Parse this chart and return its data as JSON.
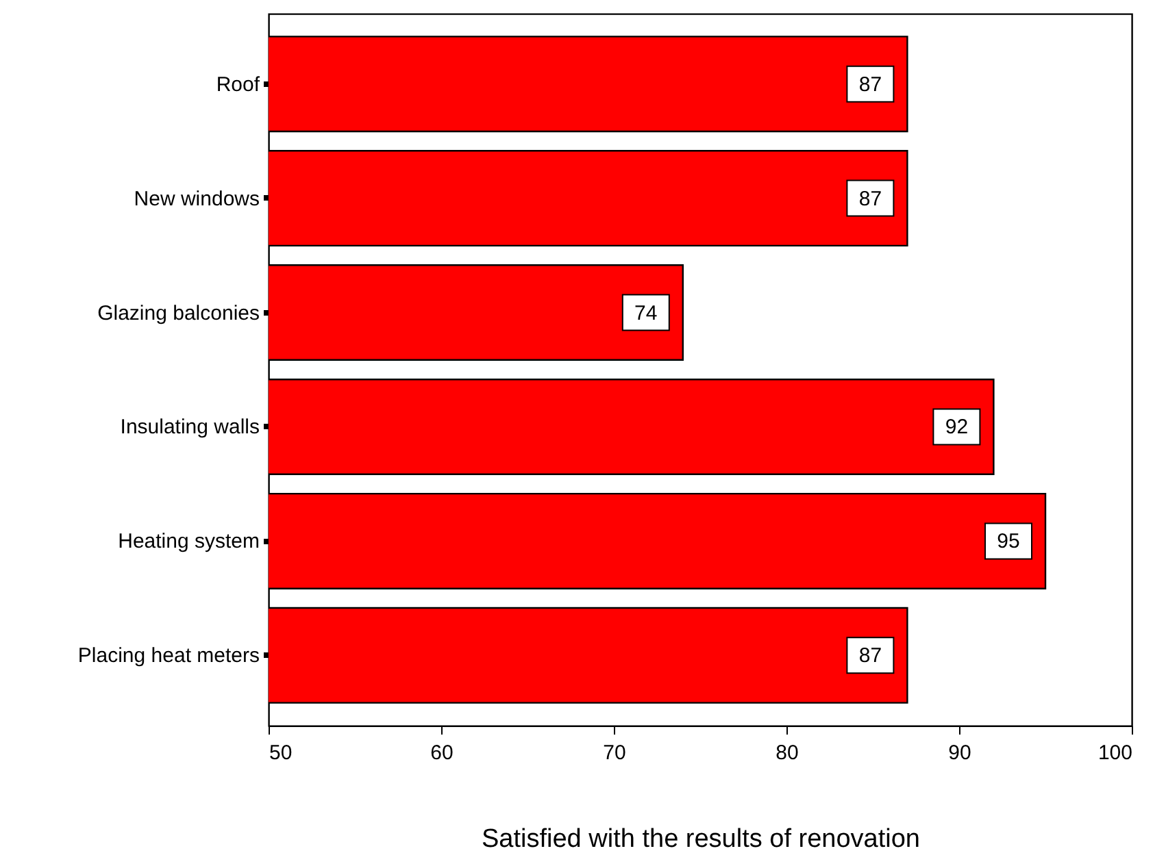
{
  "chart_data": {
    "type": "bar",
    "orientation": "horizontal",
    "xlabel": "Satisfied with the results of renovation",
    "categories": [
      "Roof",
      "New windows",
      "Glazing balconies",
      "Insulating walls",
      "Heating system",
      "Placing heat meters"
    ],
    "values": [
      87,
      87,
      74,
      92,
      95,
      87
    ],
    "color": "#ff0000",
    "xlim": [
      50,
      100
    ],
    "xticks": [
      50,
      60,
      70,
      80,
      90,
      100
    ],
    "grid": false,
    "data_labels": true
  }
}
